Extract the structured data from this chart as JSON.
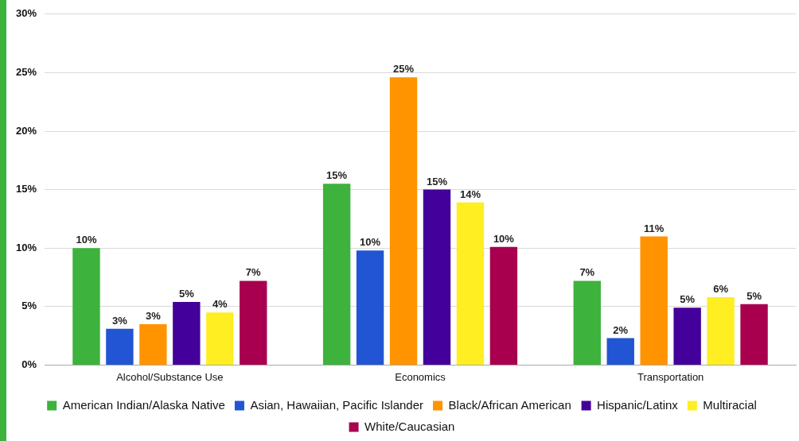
{
  "chart_data": {
    "type": "bar",
    "categories": [
      "Alcohol/Substance Use",
      "Economics",
      "Transportation"
    ],
    "series": [
      {
        "name": "American Indian/Alaska Native",
        "color": "#3db23d",
        "values": [
          10,
          15.5,
          7.2
        ],
        "value_labels": [
          "10%",
          "15%",
          "7%"
        ]
      },
      {
        "name": "Asian, Hawaiian, Pacific Islander",
        "color": "#2255d4",
        "values": [
          3.1,
          9.8,
          2.3
        ],
        "value_labels": [
          "3%",
          "10%",
          "2%"
        ]
      },
      {
        "name": "Black/African American",
        "color": "#ff9400",
        "values": [
          3.5,
          24.6,
          11
        ],
        "value_labels": [
          "3%",
          "25%",
          "11%"
        ]
      },
      {
        "name": "Hispanic/Latinx",
        "color": "#43009a",
        "values": [
          5.4,
          15,
          4.9
        ],
        "value_labels": [
          "5%",
          "15%",
          "5%"
        ]
      },
      {
        "name": "Multiracial",
        "color": "#ffee22",
        "values": [
          4.5,
          13.9,
          5.8
        ],
        "value_labels": [
          "4%",
          "14%",
          "6%"
        ]
      },
      {
        "name": "White/Caucasian",
        "color": "#a8004e",
        "values": [
          7.2,
          10.1,
          5.2
        ],
        "value_labels": [
          "7%",
          "10%",
          "5%"
        ]
      }
    ],
    "ylim": [
      0,
      30
    ],
    "yticks": [
      {
        "value": 0,
        "label": "0%"
      },
      {
        "value": 5,
        "label": "5%"
      },
      {
        "value": 10,
        "label": "10%"
      },
      {
        "value": 15,
        "label": "15%"
      },
      {
        "value": 20,
        "label": "20%"
      },
      {
        "value": 25,
        "label": "25%"
      },
      {
        "value": 30,
        "label": "30%"
      }
    ],
    "grid": "y",
    "legend": "bottom"
  }
}
